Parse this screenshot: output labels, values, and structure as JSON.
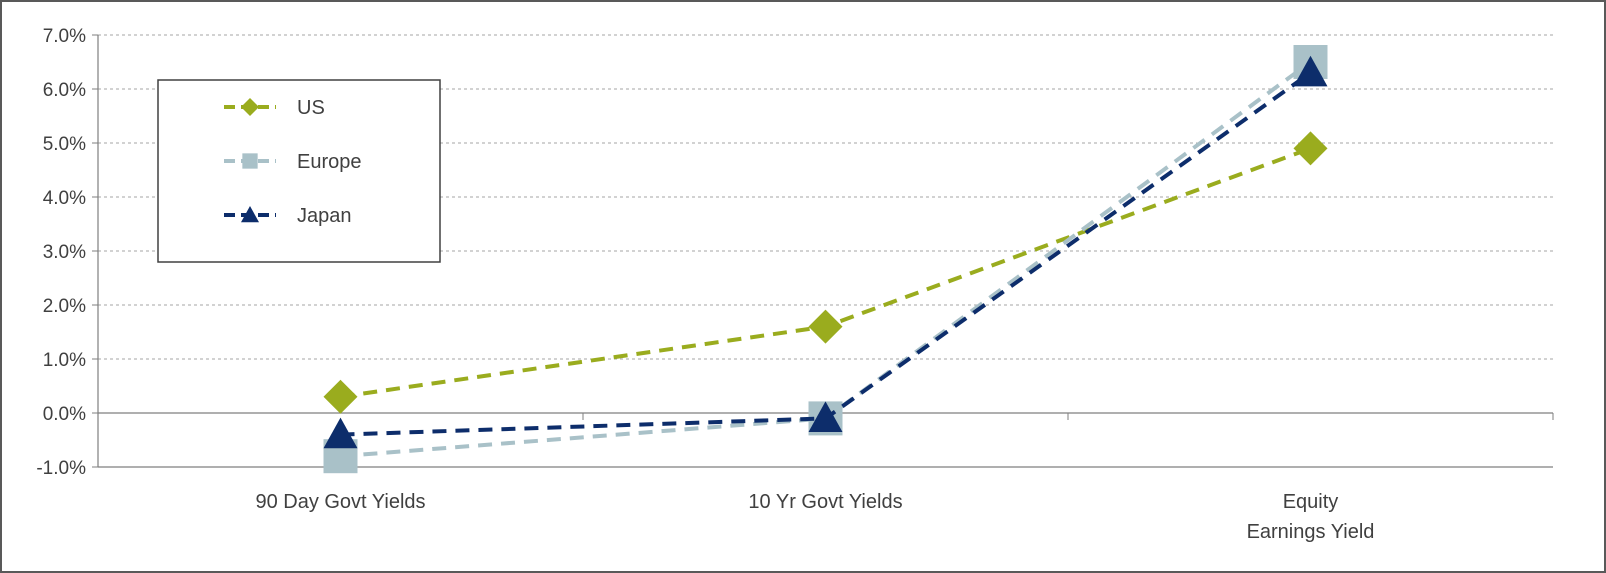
{
  "chart_data": {
    "type": "line",
    "categories": [
      "90 Day Govt Yields",
      "10 Yr Govt Yields",
      "Equity\nEarnings Yield"
    ],
    "series": [
      {
        "name": "US",
        "values": [
          0.3,
          1.6,
          4.9
        ],
        "color": "#9aac1e",
        "marker": "diamond"
      },
      {
        "name": "Europe",
        "values": [
          -0.8,
          -0.1,
          6.5
        ],
        "color": "#a9c1c8",
        "marker": "square"
      },
      {
        "name": "Japan",
        "values": [
          -0.4,
          -0.1,
          6.3
        ],
        "color": "#0d2d6b",
        "marker": "triangle"
      }
    ],
    "yticks": [
      "7.0%",
      "6.0%",
      "5.0%",
      "4.0%",
      "3.0%",
      "2.0%",
      "1.0%",
      "0.0%",
      "-1.0%"
    ],
    "ylim": [
      -1,
      7
    ],
    "grid": true,
    "legend_position": "top-left",
    "title": "",
    "xlabel": "",
    "ylabel": ""
  }
}
